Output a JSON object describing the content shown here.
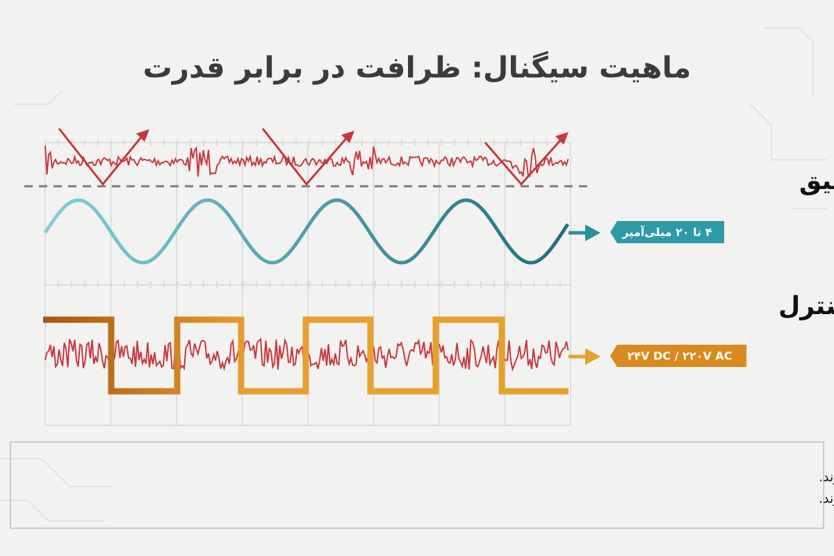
{
  "header": {
    "title": "ماهیت سیگنال: ظرافت در برابر قدرت"
  },
  "instrument": {
    "label": "کابل ابزار دقیق",
    "badge": "۴ تا ۲۰ میلی‌آمپر"
  },
  "control": {
    "label": "کابل کنترل",
    "badge": "۲۴V DC / ۲۲۰V AC"
  },
  "caption": {
    "lines": [
      "کابل‌های ابزار دقیق سیگنال‌های ضعیف و کم‌توان (آنالوگ) را منتقل می‌کنند که به شدت در برابر نویز آسیب‌پذیرند.",
      "کابل‌های کنترل، حامل سیگنال‌های گسسته و توان محدود هستند که حساسیت کمتری به تداخل دارند."
    ]
  }
}
